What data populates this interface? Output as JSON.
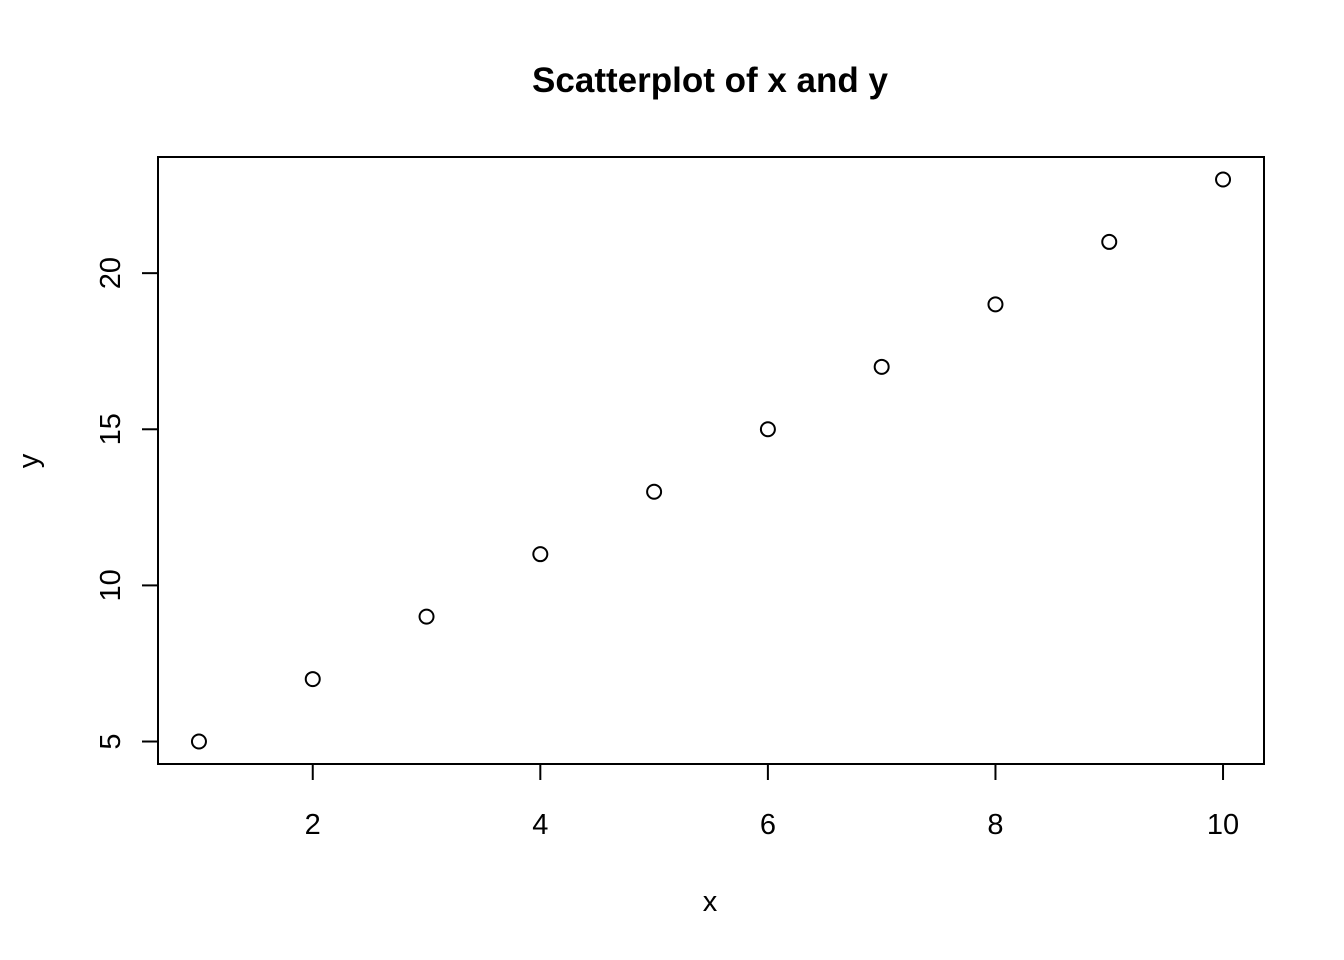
{
  "chart_data": {
    "type": "scatter",
    "title": "Scatterplot of x and y",
    "xlabel": "x",
    "ylabel": "y",
    "x": [
      1,
      2,
      3,
      4,
      5,
      6,
      7,
      8,
      9,
      10
    ],
    "y": [
      5,
      7,
      9,
      11,
      13,
      15,
      17,
      19,
      21,
      23
    ],
    "xlim": [
      0.64,
      10.36
    ],
    "ylim": [
      4.28,
      23.72
    ],
    "x_ticks": [
      2,
      4,
      6,
      8,
      10
    ],
    "x_tick_labels": [
      "2",
      "4",
      "6",
      "8",
      "10"
    ],
    "y_ticks": [
      5,
      10,
      15,
      20
    ],
    "y_tick_labels": [
      "5",
      "10",
      "15",
      "20"
    ],
    "marker": "open-circle",
    "grid": false,
    "legend": "none",
    "colors": {
      "points": "#000000",
      "axes": "#000000",
      "background": "#ffffff"
    }
  }
}
